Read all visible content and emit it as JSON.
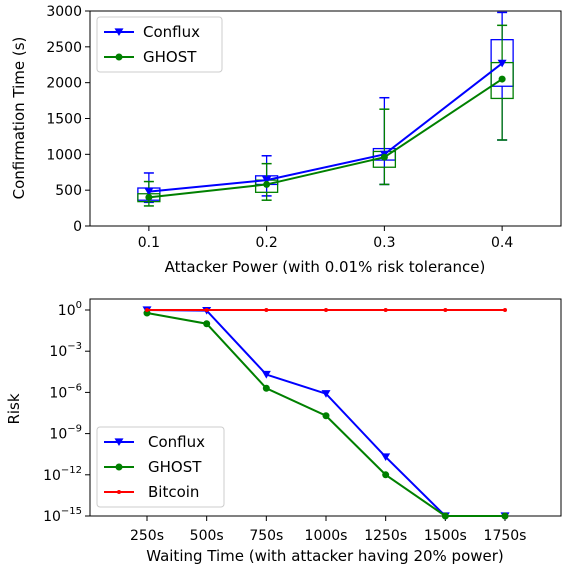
{
  "chart_data": [
    {
      "type": "line",
      "xlabel": "Attacker Power (with 0.01% risk tolerance)",
      "ylabel": "Confirmation Time (s)",
      "x": [
        0.1,
        0.2,
        0.3,
        0.4
      ],
      "x_ticks": [
        "0.1",
        "0.2",
        "0.3",
        "0.4"
      ],
      "xlim": [
        0.05,
        0.45
      ],
      "ylim": [
        0,
        3000
      ],
      "y_ticks": [
        "0",
        "500",
        "1000",
        "1500",
        "2000",
        "2500",
        "3000"
      ],
      "legend": "upper-left",
      "series": [
        {
          "name": "Conflux",
          "color": "#0000ff",
          "marker": "triangle-down",
          "values": [
            480,
            640,
            1000,
            2270
          ],
          "box": [
            {
              "q1": 360,
              "q3": 530,
              "low": 330,
              "high": 740
            },
            {
              "q1": 580,
              "q3": 700,
              "low": 420,
              "high": 980
            },
            {
              "q1": 920,
              "q3": 1080,
              "low": 580,
              "high": 1790
            },
            {
              "q1": 1950,
              "q3": 2600,
              "low": 1200,
              "high": 2980
            }
          ]
        },
        {
          "name": "GHOST",
          "color": "#008000",
          "marker": "circle",
          "values": [
            400,
            580,
            960,
            2050
          ],
          "box": [
            {
              "q1": 340,
              "q3": 450,
              "low": 280,
              "high": 620
            },
            {
              "q1": 470,
              "q3": 640,
              "low": 360,
              "high": 870
            },
            {
              "q1": 820,
              "q3": 1040,
              "low": 580,
              "high": 1630
            },
            {
              "q1": 1780,
              "q3": 2280,
              "low": 1200,
              "high": 2800
            }
          ]
        }
      ]
    },
    {
      "type": "line",
      "xlabel": "Waiting Time (with attacker having 20% power)",
      "ylabel": "Risk",
      "y_scale": "log",
      "categories": [
        "250s",
        "500s",
        "750s",
        "1000s",
        "1250s",
        "1500s",
        "1750s"
      ],
      "ylim": [
        1e-15,
        1
      ],
      "y_ticks": [
        {
          "base": "10",
          "exp": "0",
          "value": 1
        },
        {
          "base": "10",
          "exp": "−3",
          "value": 0.001
        },
        {
          "base": "10",
          "exp": "−6",
          "value": 1e-06
        },
        {
          "base": "10",
          "exp": "−9",
          "value": 1e-09
        },
        {
          "base": "10",
          "exp": "−12",
          "value": 1e-12
        },
        {
          "base": "10",
          "exp": "−15",
          "value": 1e-15
        }
      ],
      "legend": "lower-left",
      "series": [
        {
          "name": "Conflux",
          "color": "#0000ff",
          "marker": "triangle-down",
          "values": [
            1.0,
            0.9,
            2e-05,
            8e-07,
            2e-11,
            1e-15,
            1e-15
          ]
        },
        {
          "name": "GHOST",
          "color": "#008000",
          "marker": "circle",
          "values": [
            0.6,
            0.1,
            2e-06,
            2e-08,
            1e-12,
            1e-15,
            1e-15
          ]
        },
        {
          "name": "Bitcoin",
          "color": "#ff0000",
          "marker": "point",
          "values": [
            1,
            1,
            1,
            1,
            1,
            1,
            1
          ]
        }
      ]
    }
  ]
}
